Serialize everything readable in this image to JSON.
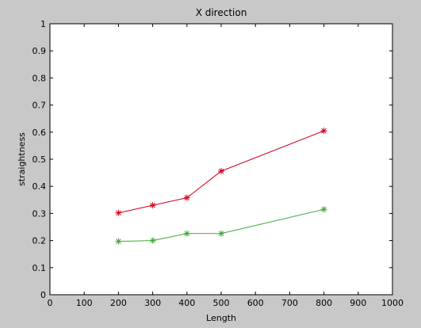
{
  "chart_data": {
    "type": "line",
    "title": "X direction",
    "xlabel": "Length",
    "ylabel": "straightness",
    "xlim": [
      0,
      1000
    ],
    "ylim": [
      0,
      1
    ],
    "xticks": [
      "0",
      "100",
      "200",
      "300",
      "400",
      "500",
      "600",
      "700",
      "800",
      "900",
      "1000"
    ],
    "yticks": [
      "0",
      "0.1",
      "0.2",
      "0.3",
      "0.4",
      "0.5",
      "0.6",
      "0.7",
      "0.8",
      "0.9",
      "1"
    ],
    "grid": false,
    "marker": "*",
    "series": [
      {
        "color": "#d6001c",
        "x": [
          200,
          300,
          400,
          500,
          800
        ],
        "y": [
          0.302,
          0.33,
          0.358,
          0.456,
          0.605
        ]
      },
      {
        "color": "#3ea835",
        "x": [
          200,
          300,
          400,
          500,
          800
        ],
        "y": [
          0.197,
          0.2,
          0.226,
          0.226,
          0.315
        ]
      }
    ]
  }
}
